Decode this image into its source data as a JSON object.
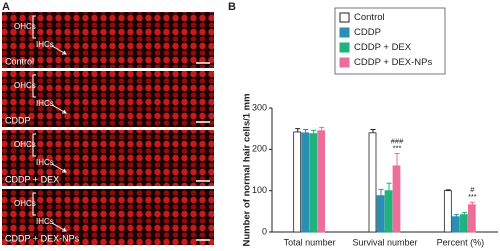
{
  "panel_a": {
    "label": "A",
    "ohc_label": "OHCs",
    "ihc_label": "IHCs",
    "images": [
      "Control",
      "CDDP",
      "CDDP + DEX",
      "CDDP + DEX-NPs"
    ]
  },
  "chart_data": {
    "type": "bar",
    "panel_label": "B",
    "y_label": "Number of normal hair cells/1 mm",
    "categories": [
      "Total number",
      "Survival number",
      "Percent (%)"
    ],
    "ylim": [
      0,
      300
    ],
    "yticks": [
      0,
      100,
      200,
      300
    ],
    "legend": "top-right",
    "series": [
      {
        "name": "Control",
        "color": "#ffffff",
        "values": [
          242,
          240,
          100
        ],
        "errors": [
          8,
          8,
          2
        ]
      },
      {
        "name": "CDDP",
        "color": "#2a8fb3",
        "values": [
          240,
          88,
          37
        ],
        "errors": [
          8,
          15,
          5
        ]
      },
      {
        "name": "CDDP + DEX",
        "color": "#1fb27c",
        "values": [
          238,
          100,
          42
        ],
        "errors": [
          8,
          18,
          5
        ]
      },
      {
        "name": "CDDP + DEX-NPs",
        "color": "#ec6f9b",
        "values": [
          245,
          160,
          66
        ],
        "errors": [
          8,
          30,
          6
        ],
        "significance": [
          null,
          [
            "###",
            "***"
          ],
          [
            "#",
            "***"
          ]
        ]
      }
    ]
  }
}
